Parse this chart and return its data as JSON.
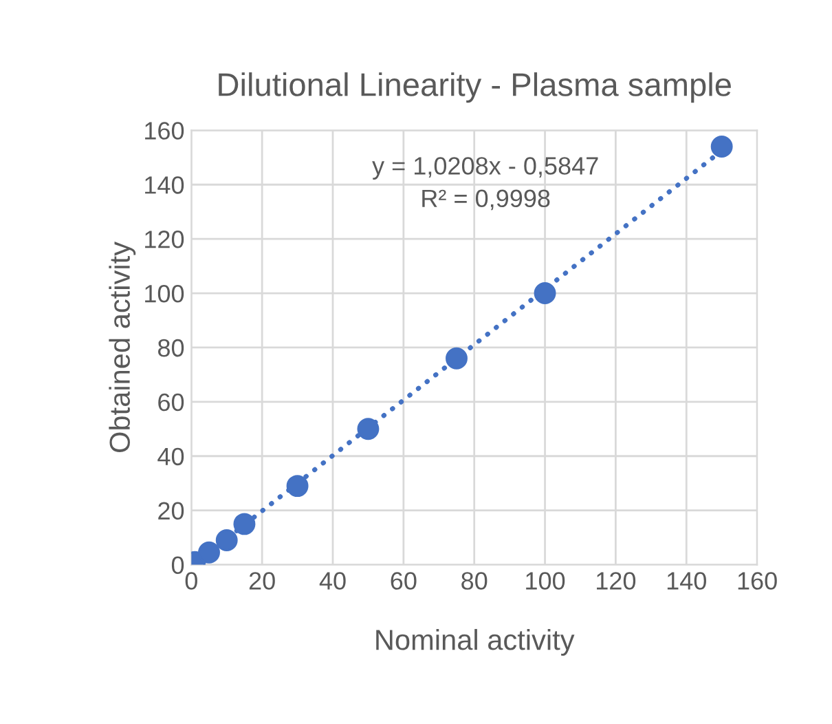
{
  "chart_data": {
    "type": "scatter",
    "title": "Dilutional Linearity - Plasma sample",
    "xlabel": "Nominal activity",
    "ylabel": "Obtained activity",
    "xlim": [
      0,
      160
    ],
    "xticks": [
      0,
      20,
      40,
      60,
      80,
      100,
      120,
      140,
      160
    ],
    "ylim": [
      0,
      160
    ],
    "yticks": [
      0,
      20,
      40,
      60,
      80,
      100,
      120,
      140,
      160
    ],
    "grid": true,
    "legend": false,
    "marker": "circle",
    "series": [
      {
        "color": "#4472c4",
        "x": [
          1,
          5,
          10,
          15,
          30,
          50,
          75,
          100,
          150
        ],
        "values": [
          1,
          4.5,
          9,
          15,
          29,
          50,
          76,
          100,
          154
        ]
      },
      {
        "type": "line",
        "color": "#4472c4",
        "line_style": "dotted",
        "marker": "none",
        "x": [
          0.6,
          150
        ],
        "values": [
          0,
          152.5
        ]
      }
    ],
    "annotations": [
      "y = 1,0208x - 0,5847",
      "R² = 0,9998"
    ]
  }
}
